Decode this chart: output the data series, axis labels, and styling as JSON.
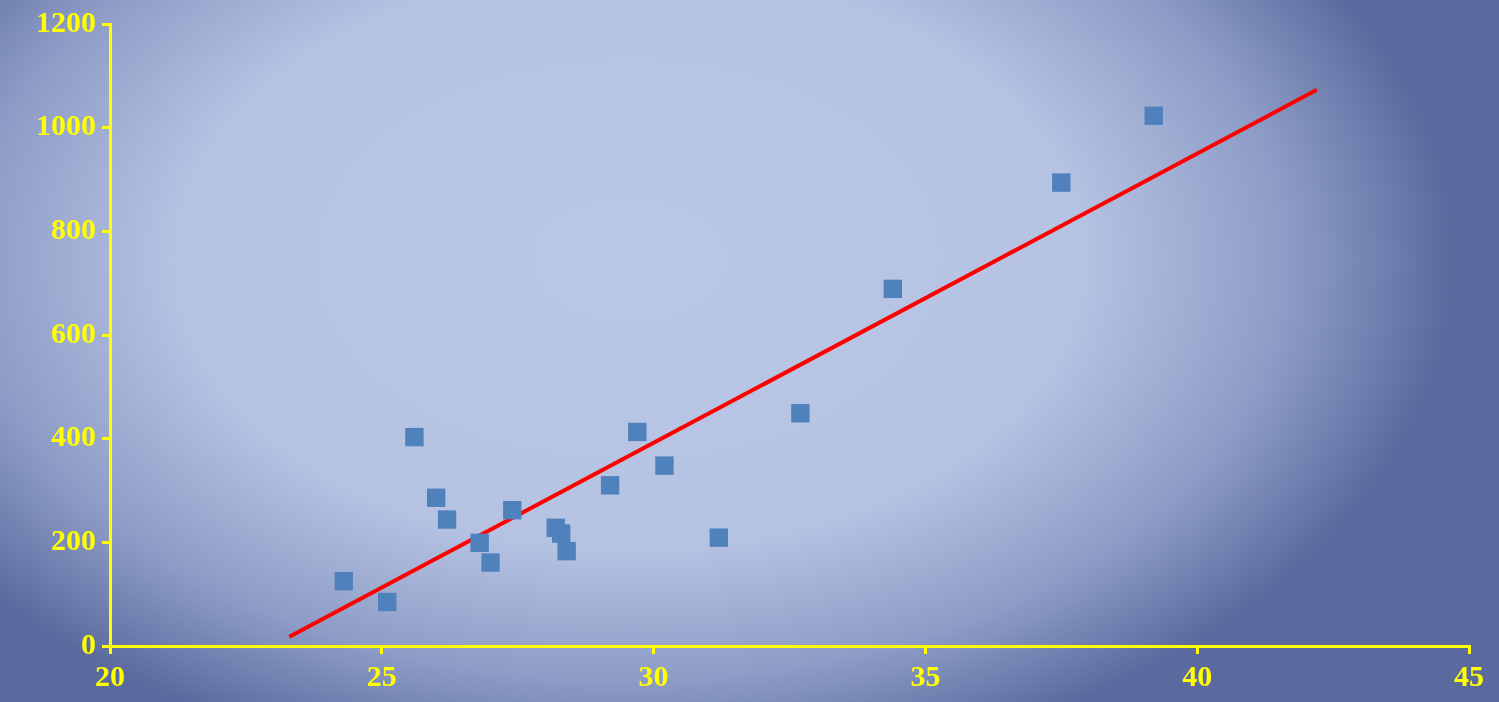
{
  "chart_data": {
    "type": "scatter",
    "xlim": [
      20,
      45
    ],
    "xticks": [
      20,
      25,
      30,
      35,
      40,
      45
    ],
    "ylim": [
      0,
      1200
    ],
    "yticks": [
      0,
      200,
      400,
      600,
      800,
      1000,
      1200
    ],
    "grid": false,
    "legend": false,
    "series": [
      {
        "type": "scatter",
        "color": "#4f81bd",
        "marker": "square",
        "x": [
          24.3,
          25.1,
          25.6,
          26.0,
          26.2,
          26.8,
          27.0,
          27.4,
          28.2,
          28.3,
          28.4,
          29.2,
          29.7,
          30.2,
          31.2,
          32.7,
          34.4,
          37.5,
          39.2
        ],
        "values": [
          125,
          85,
          403,
          286,
          244,
          199,
          161,
          262,
          228,
          217,
          183,
          310,
          413,
          348,
          209,
          449,
          689,
          894,
          1023
        ]
      },
      {
        "type": "line",
        "color": "#ff0000",
        "marker": "none",
        "x": [
          23.3,
          42.2
        ],
        "values": [
          18,
          1073
        ]
      }
    ]
  }
}
